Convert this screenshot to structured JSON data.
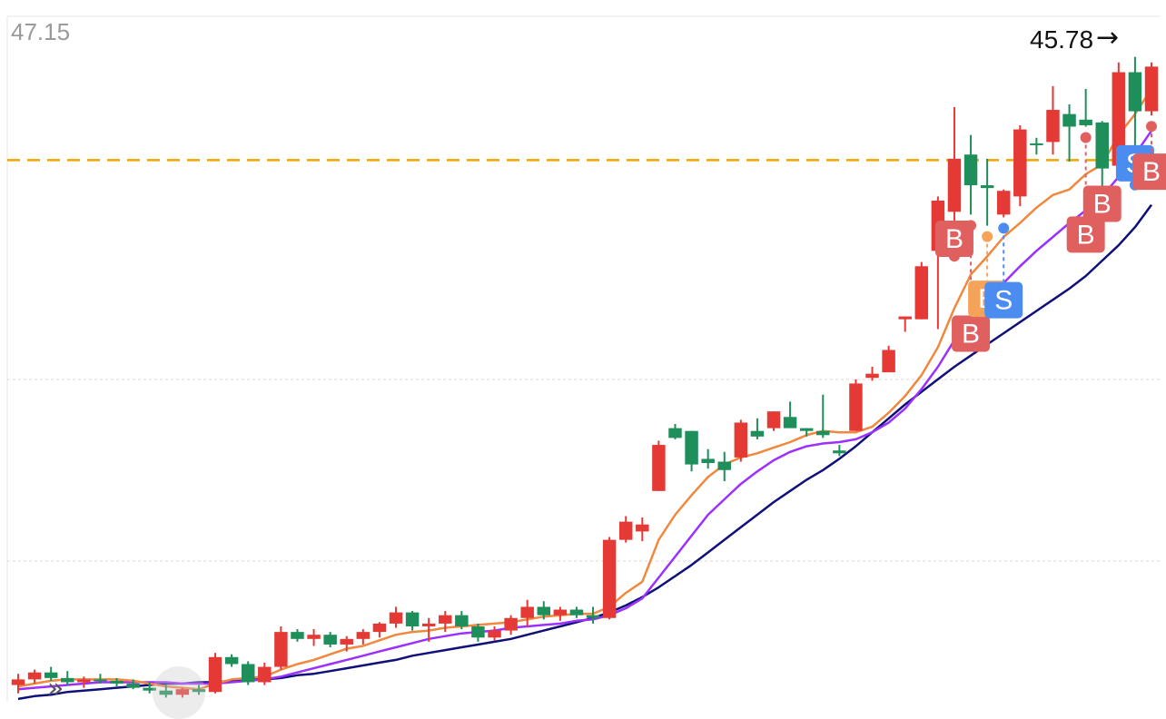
{
  "chart_data": {
    "type": "candlestick",
    "title": "",
    "y_top_label": "47.15",
    "max_marker": {
      "value": 45.78,
      "label": "45.78",
      "arrow": "→"
    },
    "ylim": [
      0,
      47.15
    ],
    "reference_line": {
      "value": 38.8,
      "color": "#f0a500",
      "style": "dashed"
    },
    "grid": true,
    "colors": {
      "up": "#e53935",
      "down": "#1e8e5a",
      "ma_short": "#f0883e",
      "ma_mid": "#9b30ff",
      "ma_long": "#10107a",
      "buy": "#e06060",
      "sell_blue": "#4a8cf0",
      "sell_orange": "#f6a35a"
    },
    "candles": [
      {
        "o": 1.2,
        "h": 2.0,
        "l": 0.6,
        "c": 1.6
      },
      {
        "o": 1.6,
        "h": 2.3,
        "l": 1.3,
        "c": 2.1
      },
      {
        "o": 2.1,
        "h": 2.5,
        "l": 1.5,
        "c": 1.7
      },
      {
        "o": 1.7,
        "h": 2.2,
        "l": 1.2,
        "c": 1.4
      },
      {
        "o": 1.4,
        "h": 1.8,
        "l": 1.0,
        "c": 1.6
      },
      {
        "o": 1.6,
        "h": 2.0,
        "l": 1.3,
        "c": 1.5
      },
      {
        "o": 1.5,
        "h": 1.7,
        "l": 1.1,
        "c": 1.3
      },
      {
        "o": 1.3,
        "h": 1.6,
        "l": 0.9,
        "c": 1.0
      },
      {
        "o": 1.0,
        "h": 1.4,
        "l": 0.6,
        "c": 0.8
      },
      {
        "o": 0.8,
        "h": 1.2,
        "l": 0.3,
        "c": 0.5
      },
      {
        "o": 0.5,
        "h": 1.0,
        "l": 0.3,
        "c": 0.9
      },
      {
        "o": 0.9,
        "h": 1.2,
        "l": 0.5,
        "c": 0.7
      },
      {
        "o": 0.7,
        "h": 3.5,
        "l": 0.6,
        "c": 3.2
      },
      {
        "o": 3.2,
        "h": 3.4,
        "l": 2.5,
        "c": 2.7
      },
      {
        "o": 2.7,
        "h": 2.9,
        "l": 1.2,
        "c": 1.4
      },
      {
        "o": 1.4,
        "h": 2.8,
        "l": 1.2,
        "c": 2.5
      },
      {
        "o": 2.5,
        "h": 5.4,
        "l": 2.3,
        "c": 5.0
      },
      {
        "o": 5.0,
        "h": 5.2,
        "l": 4.3,
        "c": 4.5
      },
      {
        "o": 4.5,
        "h": 5.2,
        "l": 4.0,
        "c": 4.8
      },
      {
        "o": 4.8,
        "h": 5.0,
        "l": 3.9,
        "c": 4.1
      },
      {
        "o": 4.1,
        "h": 4.7,
        "l": 3.6,
        "c": 4.5
      },
      {
        "o": 4.5,
        "h": 5.2,
        "l": 4.1,
        "c": 5.0
      },
      {
        "o": 5.0,
        "h": 5.7,
        "l": 4.6,
        "c": 5.6
      },
      {
        "o": 5.6,
        "h": 6.8,
        "l": 5.3,
        "c": 6.4
      },
      {
        "o": 6.4,
        "h": 6.5,
        "l": 5.1,
        "c": 5.4
      },
      {
        "o": 5.4,
        "h": 6.0,
        "l": 4.3,
        "c": 5.6
      },
      {
        "o": 5.6,
        "h": 6.5,
        "l": 5.0,
        "c": 6.2
      },
      {
        "o": 6.2,
        "h": 6.5,
        "l": 5.2,
        "c": 5.4
      },
      {
        "o": 5.4,
        "h": 5.6,
        "l": 4.3,
        "c": 4.6
      },
      {
        "o": 4.6,
        "h": 5.4,
        "l": 4.4,
        "c": 5.1
      },
      {
        "o": 5.1,
        "h": 6.2,
        "l": 4.8,
        "c": 6.0
      },
      {
        "o": 6.0,
        "h": 7.3,
        "l": 5.4,
        "c": 6.8
      },
      {
        "o": 6.8,
        "h": 7.2,
        "l": 5.9,
        "c": 6.2
      },
      {
        "o": 6.2,
        "h": 6.8,
        "l": 5.8,
        "c": 6.6
      },
      {
        "o": 6.6,
        "h": 6.8,
        "l": 6.0,
        "c": 6.2
      },
      {
        "o": 6.2,
        "h": 6.8,
        "l": 5.6,
        "c": 6.0
      },
      {
        "o": 6.0,
        "h": 11.8,
        "l": 5.9,
        "c": 11.6
      },
      {
        "o": 11.6,
        "h": 13.3,
        "l": 11.4,
        "c": 12.9
      },
      {
        "o": 12.2,
        "h": 13.2,
        "l": 11.5,
        "c": 12.7
      },
      {
        "o": 15.1,
        "h": 18.7,
        "l": 15.1,
        "c": 18.4
      },
      {
        "o": 19.6,
        "h": 19.9,
        "l": 18.8,
        "c": 18.9
      },
      {
        "o": 19.4,
        "h": 19.4,
        "l": 16.5,
        "c": 17.0
      },
      {
        "o": 17.4,
        "h": 18.1,
        "l": 16.7,
        "c": 17.1
      },
      {
        "o": 17.2,
        "h": 17.9,
        "l": 15.8,
        "c": 16.6
      },
      {
        "o": 17.5,
        "h": 20.2,
        "l": 17.2,
        "c": 20.0
      },
      {
        "o": 19.4,
        "h": 20.3,
        "l": 18.8,
        "c": 19.0
      },
      {
        "o": 19.6,
        "h": 20.8,
        "l": 19.4,
        "c": 20.8
      },
      {
        "o": 20.4,
        "h": 21.5,
        "l": 19.7,
        "c": 19.6
      },
      {
        "o": 19.6,
        "h": 19.6,
        "l": 19.0,
        "c": 19.4
      },
      {
        "o": 19.4,
        "h": 22.0,
        "l": 18.9,
        "c": 19.1
      },
      {
        "o": 18.0,
        "h": 18.4,
        "l": 17.6,
        "c": 17.8
      },
      {
        "o": 19.4,
        "h": 23.1,
        "l": 19.4,
        "c": 22.8
      },
      {
        "o": 23.2,
        "h": 24.0,
        "l": 23.0,
        "c": 23.5
      },
      {
        "o": 23.6,
        "h": 25.5,
        "l": 23.6,
        "c": 25.2
      },
      {
        "o": 27.4,
        "h": 27.6,
        "l": 26.5,
        "c": 27.6
      },
      {
        "o": 27.4,
        "h": 31.5,
        "l": 27.4,
        "c": 31.2
      },
      {
        "o": 32.3,
        "h": 36.2,
        "l": 26.7,
        "c": 35.9
      },
      {
        "o": 35.1,
        "h": 42.6,
        "l": 32.7,
        "c": 38.9
      },
      {
        "o": 39.2,
        "h": 40.6,
        "l": 34.9,
        "c": 37.0
      },
      {
        "o": 37.0,
        "h": 38.9,
        "l": 34.1,
        "c": 36.8
      },
      {
        "o": 34.9,
        "h": 36.7,
        "l": 34.7,
        "c": 36.6
      },
      {
        "o": 36.2,
        "h": 41.3,
        "l": 35.5,
        "c": 41.0
      },
      {
        "o": 40.0,
        "h": 40.4,
        "l": 39.2,
        "c": 39.9
      },
      {
        "o": 40.1,
        "h": 44.1,
        "l": 39.2,
        "c": 42.4
      },
      {
        "o": 42.1,
        "h": 42.8,
        "l": 38.7,
        "c": 41.2
      },
      {
        "o": 41.7,
        "h": 43.9,
        "l": 41.2,
        "c": 41.3
      },
      {
        "o": 41.5,
        "h": 41.6,
        "l": 36.9,
        "c": 38.2
      },
      {
        "o": 38.4,
        "h": 45.8,
        "l": 38.4,
        "c": 45.1
      },
      {
        "o": 45.1,
        "h": 46.2,
        "l": 37.8,
        "c": 42.3
      },
      {
        "o": 42.3,
        "h": 45.8,
        "l": 42.0,
        "c": 45.5
      }
    ],
    "ma_short": [
      1.1,
      1.3,
      1.5,
      1.6,
      1.6,
      1.6,
      1.6,
      1.5,
      1.3,
      1.1,
      1.0,
      0.9,
      1.3,
      1.6,
      1.7,
      1.8,
      2.3,
      2.7,
      3.0,
      3.4,
      3.8,
      4.0,
      4.4,
      4.8,
      5.0,
      5.1,
      5.3,
      5.4,
      5.5,
      5.6,
      5.7,
      5.9,
      6.1,
      6.2,
      6.3,
      6.3,
      6.8,
      7.8,
      8.6,
      11.6,
      13.4,
      14.8,
      16.1,
      17.0,
      17.5,
      17.8,
      18.2,
      18.6,
      19.1,
      19.4,
      19.3,
      19.3,
      19.7,
      20.7,
      21.9,
      23.4,
      25.4,
      28.2,
      30.6,
      31.9,
      33.3,
      34.3,
      35.4,
      36.3,
      36.7,
      37.8,
      38.5,
      40.6,
      42.1,
      43.9
    ],
    "ma_mid": [
      0.9,
      1.0,
      1.1,
      1.2,
      1.3,
      1.4,
      1.4,
      1.4,
      1.4,
      1.4,
      1.3,
      1.3,
      1.3,
      1.4,
      1.5,
      1.6,
      1.8,
      2.1,
      2.4,
      2.7,
      3.0,
      3.3,
      3.6,
      3.9,
      4.2,
      4.5,
      4.7,
      4.9,
      5.0,
      5.1,
      5.3,
      5.4,
      5.5,
      5.6,
      5.8,
      5.9,
      6.2,
      6.7,
      7.4,
      8.9,
      10.4,
      11.9,
      13.4,
      14.5,
      15.6,
      16.5,
      17.3,
      17.9,
      18.3,
      18.5,
      18.6,
      18.8,
      19.3,
      20.0,
      21.0,
      22.4,
      24.0,
      25.9,
      27.6,
      28.9,
      30.0,
      31.2,
      32.3,
      33.3,
      34.3,
      35.2,
      36.2,
      37.6,
      39.2,
      40.9
    ],
    "ma_long": [
      0.2,
      0.4,
      0.5,
      0.7,
      0.8,
      0.9,
      1.0,
      1.1,
      1.2,
      1.3,
      1.3,
      1.4,
      1.4,
      1.5,
      1.6,
      1.6,
      1.7,
      1.9,
      2.0,
      2.2,
      2.4,
      2.6,
      2.8,
      3.0,
      3.3,
      3.5,
      3.7,
      3.9,
      4.1,
      4.3,
      4.5,
      4.8,
      5.1,
      5.4,
      5.7,
      6.0,
      6.4,
      6.9,
      7.5,
      8.2,
      9.0,
      9.8,
      10.7,
      11.6,
      12.5,
      13.4,
      14.3,
      15.1,
      15.9,
      16.6,
      17.4,
      18.3,
      19.3,
      20.3,
      21.3,
      22.2,
      23.1,
      24.0,
      24.8,
      25.6,
      26.4,
      27.2,
      28.0,
      28.8,
      29.6,
      30.5,
      31.6,
      32.7,
      34.0,
      35.6
    ],
    "signals": [
      {
        "label": "B",
        "index": 57,
        "value": 33.3,
        "kind": "buy"
      },
      {
        "label": "B",
        "index": 58,
        "value": 26.5,
        "kind": "buy"
      },
      {
        "label": "B",
        "index": 59,
        "value": 29.0,
        "kind": "buy_orange"
      },
      {
        "label": "S",
        "index": 60,
        "value": 28.9,
        "kind": "sell"
      },
      {
        "label": "B",
        "index": 65,
        "value": 33.6,
        "kind": "buy"
      },
      {
        "label": "B",
        "index": 66,
        "value": 35.8,
        "kind": "buy"
      },
      {
        "label": "S",
        "index": 68,
        "value": 38.7,
        "kind": "sell"
      },
      {
        "label": "B",
        "index": 69,
        "value": 38.1,
        "kind": "buy"
      }
    ]
  },
  "ui": {
    "expand_icon_glyph": "»",
    "corner_icon_glyph": "⌐"
  }
}
